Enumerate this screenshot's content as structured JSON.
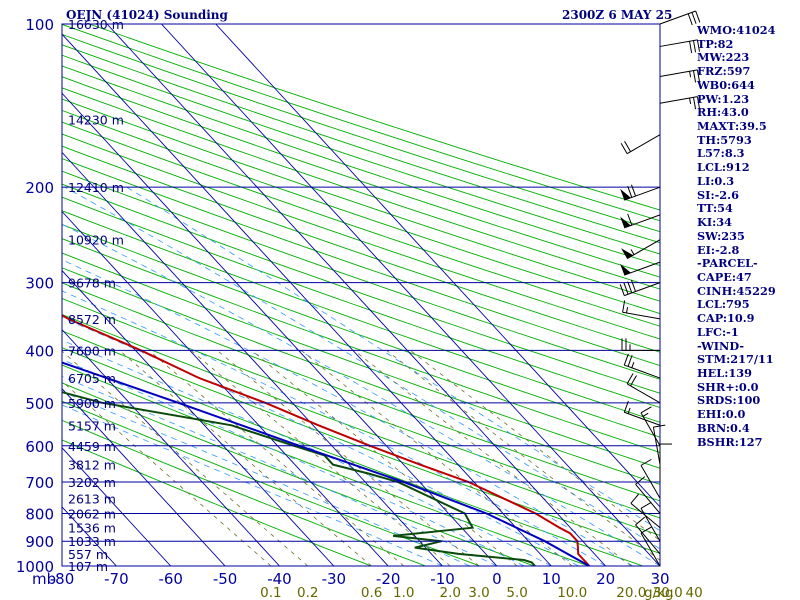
{
  "title_left": "OEJN (41024) Sounding",
  "title_right": "2300Z  6 MAY 25",
  "chart_data": {
    "type": "line",
    "title": "OEJN (41024) Sounding",
    "xlabel": "",
    "ylabel": "mb",
    "xlim": [
      -80,
      30
    ],
    "pressure_levels": [
      100,
      200,
      300,
      400,
      500,
      600,
      700,
      800,
      900,
      1000
    ],
    "temperature_ticks": [
      -80,
      -70,
      -60,
      -50,
      -40,
      -30,
      -20,
      -10,
      0,
      10,
      20,
      30
    ],
    "mixing_ratio_ticks": [
      "0.1",
      "0.2",
      "0.6",
      "1.0",
      "2.0",
      "3.0",
      "5.0",
      "10.0",
      "20.0",
      "30.0",
      "40"
    ],
    "mixing_ratio_unit": "g/kg",
    "height_labels": [
      {
        "p": 100,
        "label": "16630 m"
      },
      {
        "p": 150,
        "label": "14230 m"
      },
      {
        "p": 200,
        "label": "12410 m"
      },
      {
        "p": 250,
        "label": "10920 m"
      },
      {
        "p": 300,
        "label": "9678 m"
      },
      {
        "p": 350,
        "label": "8572 m"
      },
      {
        "p": 400,
        "label": "7600 m"
      },
      {
        "p": 450,
        "label": "6705 m"
      },
      {
        "p": 500,
        "label": "5900 m"
      },
      {
        "p": 550,
        "label": "5157 m"
      },
      {
        "p": 600,
        "label": "4459 m"
      },
      {
        "p": 650,
        "label": "3812 m"
      },
      {
        "p": 700,
        "label": "3202 m"
      },
      {
        "p": 750,
        "label": "2613 m"
      },
      {
        "p": 800,
        "label": "2062 m"
      },
      {
        "p": 850,
        "label": "1536 m"
      },
      {
        "p": 900,
        "label": "1033 m"
      },
      {
        "p": 950,
        "label": "557 m"
      },
      {
        "p": 1000,
        "label": "107 m"
      }
    ],
    "series": [
      {
        "type": "temperature",
        "color": "#c00000",
        "points": [
          [
            100,
            -81
          ],
          [
            150,
            -67
          ],
          [
            175,
            -62
          ],
          [
            200,
            -59
          ],
          [
            250,
            -50
          ],
          [
            255,
            -50
          ],
          [
            300,
            -43
          ],
          [
            350,
            -37
          ],
          [
            400,
            -29
          ],
          [
            450,
            -23
          ],
          [
            500,
            -15
          ],
          [
            550,
            -9
          ],
          [
            600,
            -3
          ],
          [
            650,
            3
          ],
          [
            700,
            9
          ],
          [
            800,
            16
          ],
          [
            850,
            18
          ],
          [
            870,
            19
          ],
          [
            900,
            19
          ],
          [
            925,
            18
          ],
          [
            950,
            17
          ],
          [
            975,
            17
          ],
          [
            985,
            17
          ],
          [
            1000,
            17
          ]
        ]
      },
      {
        "type": "dewpoint",
        "color": "#0a4a0a",
        "points": [
          [
            150,
            -108
          ],
          [
            200,
            -100
          ],
          [
            250,
            -92
          ],
          [
            255,
            -93
          ],
          [
            300,
            -86
          ],
          [
            350,
            -71
          ],
          [
            400,
            -68
          ],
          [
            450,
            -58
          ],
          [
            500,
            -45
          ],
          [
            550,
            -25
          ],
          [
            600,
            -17
          ],
          [
            625,
            -13
          ],
          [
            650,
            -13
          ],
          [
            675,
            -8
          ],
          [
            700,
            -4
          ],
          [
            800,
            3
          ],
          [
            850,
            2
          ],
          [
            880,
            -14
          ],
          [
            900,
            -6
          ],
          [
            925,
            -12
          ],
          [
            950,
            -5
          ],
          [
            975,
            6
          ],
          [
            985,
            7
          ],
          [
            1000,
            7
          ]
        ]
      },
      {
        "type": "parcel",
        "color": "#0000c0",
        "points": [
          [
            150,
            -112
          ],
          [
            200,
            -100
          ],
          [
            250,
            -85
          ],
          [
            300,
            -73
          ],
          [
            400,
            -50
          ],
          [
            500,
            -31
          ],
          [
            600,
            -16
          ],
          [
            700,
            -3
          ],
          [
            800,
            7
          ],
          [
            900,
            13
          ],
          [
            1000,
            17
          ]
        ]
      }
    ],
    "grid": true
  },
  "wind_barbs": [
    {
      "p": 100,
      "dir": 70,
      "spd": 30
    },
    {
      "p": 110,
      "dir": 80,
      "spd": 30
    },
    {
      "p": 125,
      "dir": 80,
      "spd": 25
    },
    {
      "p": 140,
      "dir": 80,
      "spd": 25
    },
    {
      "p": 160,
      "dir": 240,
      "spd": 20
    },
    {
      "p": 200,
      "dir": 250,
      "spd": 70
    },
    {
      "p": 225,
      "dir": 250,
      "spd": 60
    },
    {
      "p": 250,
      "dir": 240,
      "spd": 55
    },
    {
      "p": 275,
      "dir": 250,
      "spd": 50
    },
    {
      "p": 300,
      "dir": 250,
      "spd": 40
    },
    {
      "p": 350,
      "dir": 280,
      "spd": 15
    },
    {
      "p": 400,
      "dir": 270,
      "spd": 25
    },
    {
      "p": 450,
      "dir": 290,
      "spd": 25
    },
    {
      "p": 500,
      "dir": 300,
      "spd": 20
    },
    {
      "p": 550,
      "dir": 290,
      "spd": 15
    },
    {
      "p": 600,
      "dir": 330,
      "spd": 15
    },
    {
      "p": 650,
      "dir": 350,
      "spd": 10
    },
    {
      "p": 700,
      "dir": 360,
      "spd": 10
    },
    {
      "p": 750,
      "dir": 330,
      "spd": 10
    },
    {
      "p": 800,
      "dir": 320,
      "spd": 10
    },
    {
      "p": 850,
      "dir": 310,
      "spd": 10
    },
    {
      "p": 900,
      "dir": 330,
      "spd": 10
    },
    {
      "p": 950,
      "dir": 320,
      "spd": 10
    },
    {
      "p": 1000,
      "dir": 330,
      "spd": 10
    }
  ],
  "indices": [
    "WMO:41024",
    "TP:82",
    "MW:223",
    "FRZ:597",
    "WB0:644",
    "PW:1.23",
    "RH:43.0",
    "MAXT:39.5",
    "TH:5793",
    "L57:8.3",
    "LCL:912",
    "LI:0.3",
    "SI:-2.6",
    "TT:54",
    "KI:34",
    "SW:235",
    "EI:-2.8",
    "-PARCEL-",
    "CAPE:47",
    "CINH:45229",
    "LCL:795",
    "CAP:10.9",
    "LFC:-1",
    "-WIND-",
    "STM:217/11",
    "HEL:139",
    "SHR+:0.0",
    "SRDS:100",
    "EHI:0.0",
    "BRN:0.4",
    "BSHR:127"
  ],
  "colors": {
    "isobar": "#0000a0",
    "isotherm": "#0000a0",
    "dry_adiabat": "#00b000",
    "moist_adiabat": "#3399ff",
    "mixing_ratio": "#707030",
    "label": "#000080",
    "mixing_label": "#666600"
  }
}
